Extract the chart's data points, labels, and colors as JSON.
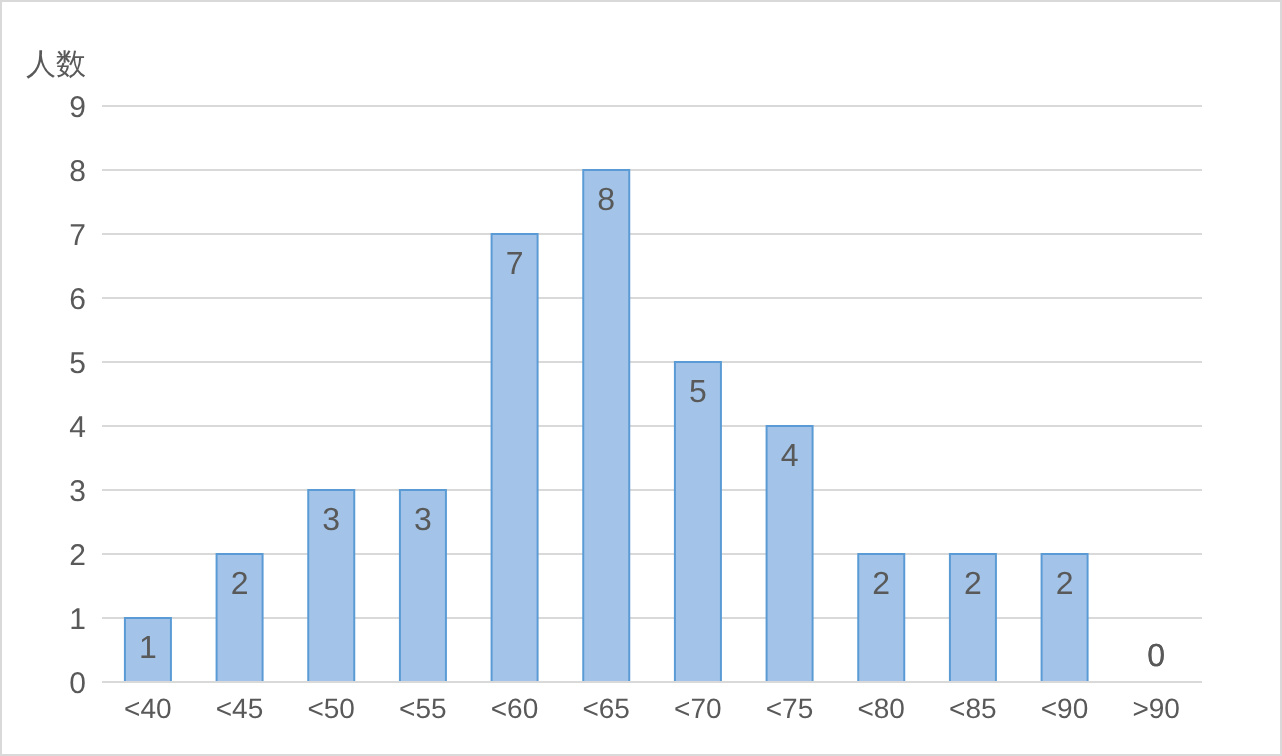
{
  "chart_data": {
    "type": "bar",
    "ylabel": "人数",
    "categories": [
      "<40",
      "<45",
      "<50",
      "<55",
      "<60",
      "<65",
      "<70",
      "<75",
      "<80",
      "<85",
      "<90",
      ">90"
    ],
    "values": [
      1,
      2,
      3,
      3,
      7,
      8,
      5,
      4,
      2,
      2,
      2,
      0
    ],
    "color": "#a3c4e8",
    "ylim": [
      0,
      9
    ],
    "yticks": [
      0,
      1,
      2,
      3,
      4,
      5,
      6,
      7,
      8,
      9
    ],
    "grid": "y",
    "data_labels": true
  }
}
